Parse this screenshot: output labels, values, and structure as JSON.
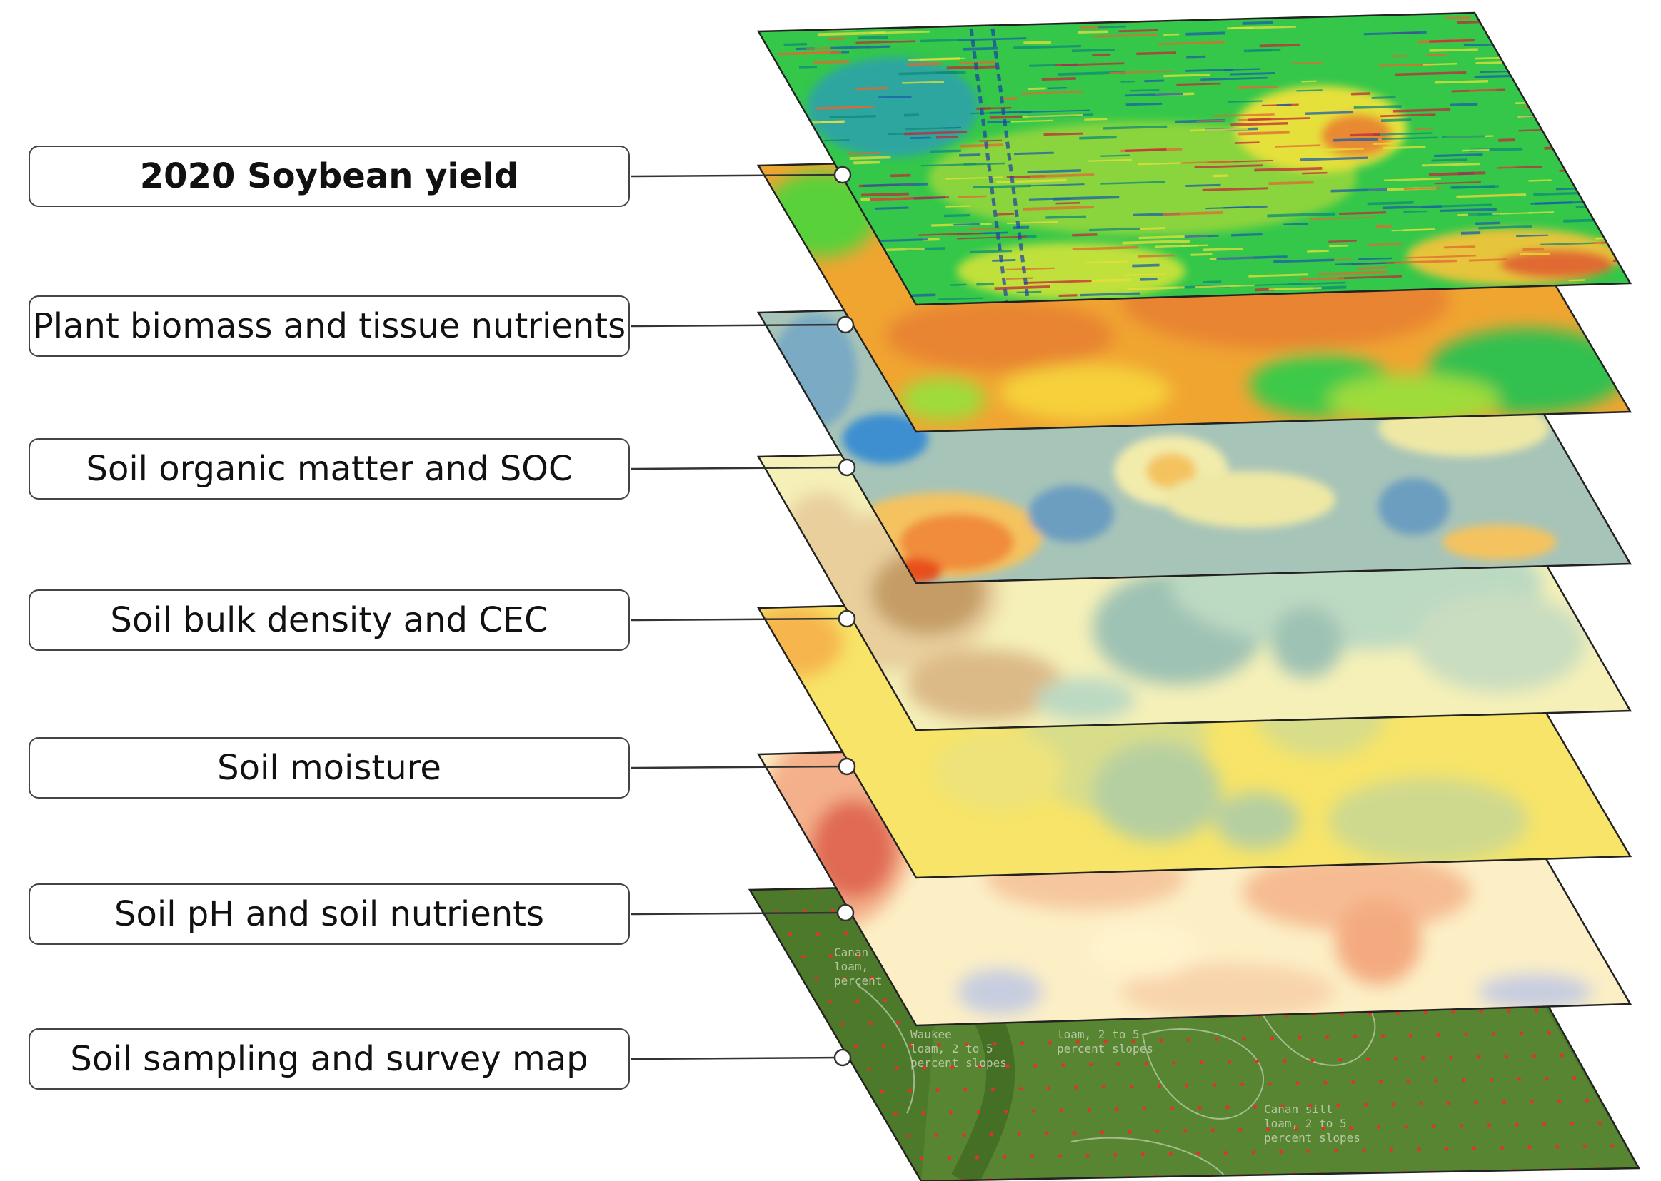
{
  "layers": [
    {
      "id": "yield",
      "label": "2020 Soybean yield",
      "bold": true,
      "scheme": "yield"
    },
    {
      "id": "biomass",
      "label": "Plant biomass and tissue nutrients",
      "bold": false,
      "scheme": "biomass"
    },
    {
      "id": "organic",
      "label": "Soil organic matter and SOC",
      "bold": false,
      "scheme": "organic"
    },
    {
      "id": "bulk",
      "label": "Soil bulk density and CEC",
      "bold": false,
      "scheme": "bulk"
    },
    {
      "id": "moisture",
      "label": "Soil moisture",
      "bold": false,
      "scheme": "moisture"
    },
    {
      "id": "ph",
      "label": "Soil pH and soil nutrients",
      "bold": false,
      "scheme": "ph"
    },
    {
      "id": "survey",
      "label": "Soil sampling and survey map",
      "bold": false,
      "scheme": "survey"
    }
  ],
  "survey_map_text": [
    [
      "Canan",
      "loam,",
      "percent"
    ],
    [
      "Waukee",
      "loam, 2 to 5",
      "percent slopes"
    ],
    [
      "loam, 2 to 5",
      "percent slopes"
    ],
    [
      "Canan silt",
      "loam, 2 to 5",
      "percent slopes"
    ]
  ],
  "colors": {
    "yield_base": "#34c74a",
    "biomass_base": "#f0a531",
    "organic_base": "#a7c4b8",
    "bulk_base": "#f5f0b8",
    "moisture_base": "#f7e468",
    "ph_base": "#fcefc6",
    "survey_base": "#4d7a2a",
    "sample_point": "#e8302a",
    "connector": "#333333"
  }
}
